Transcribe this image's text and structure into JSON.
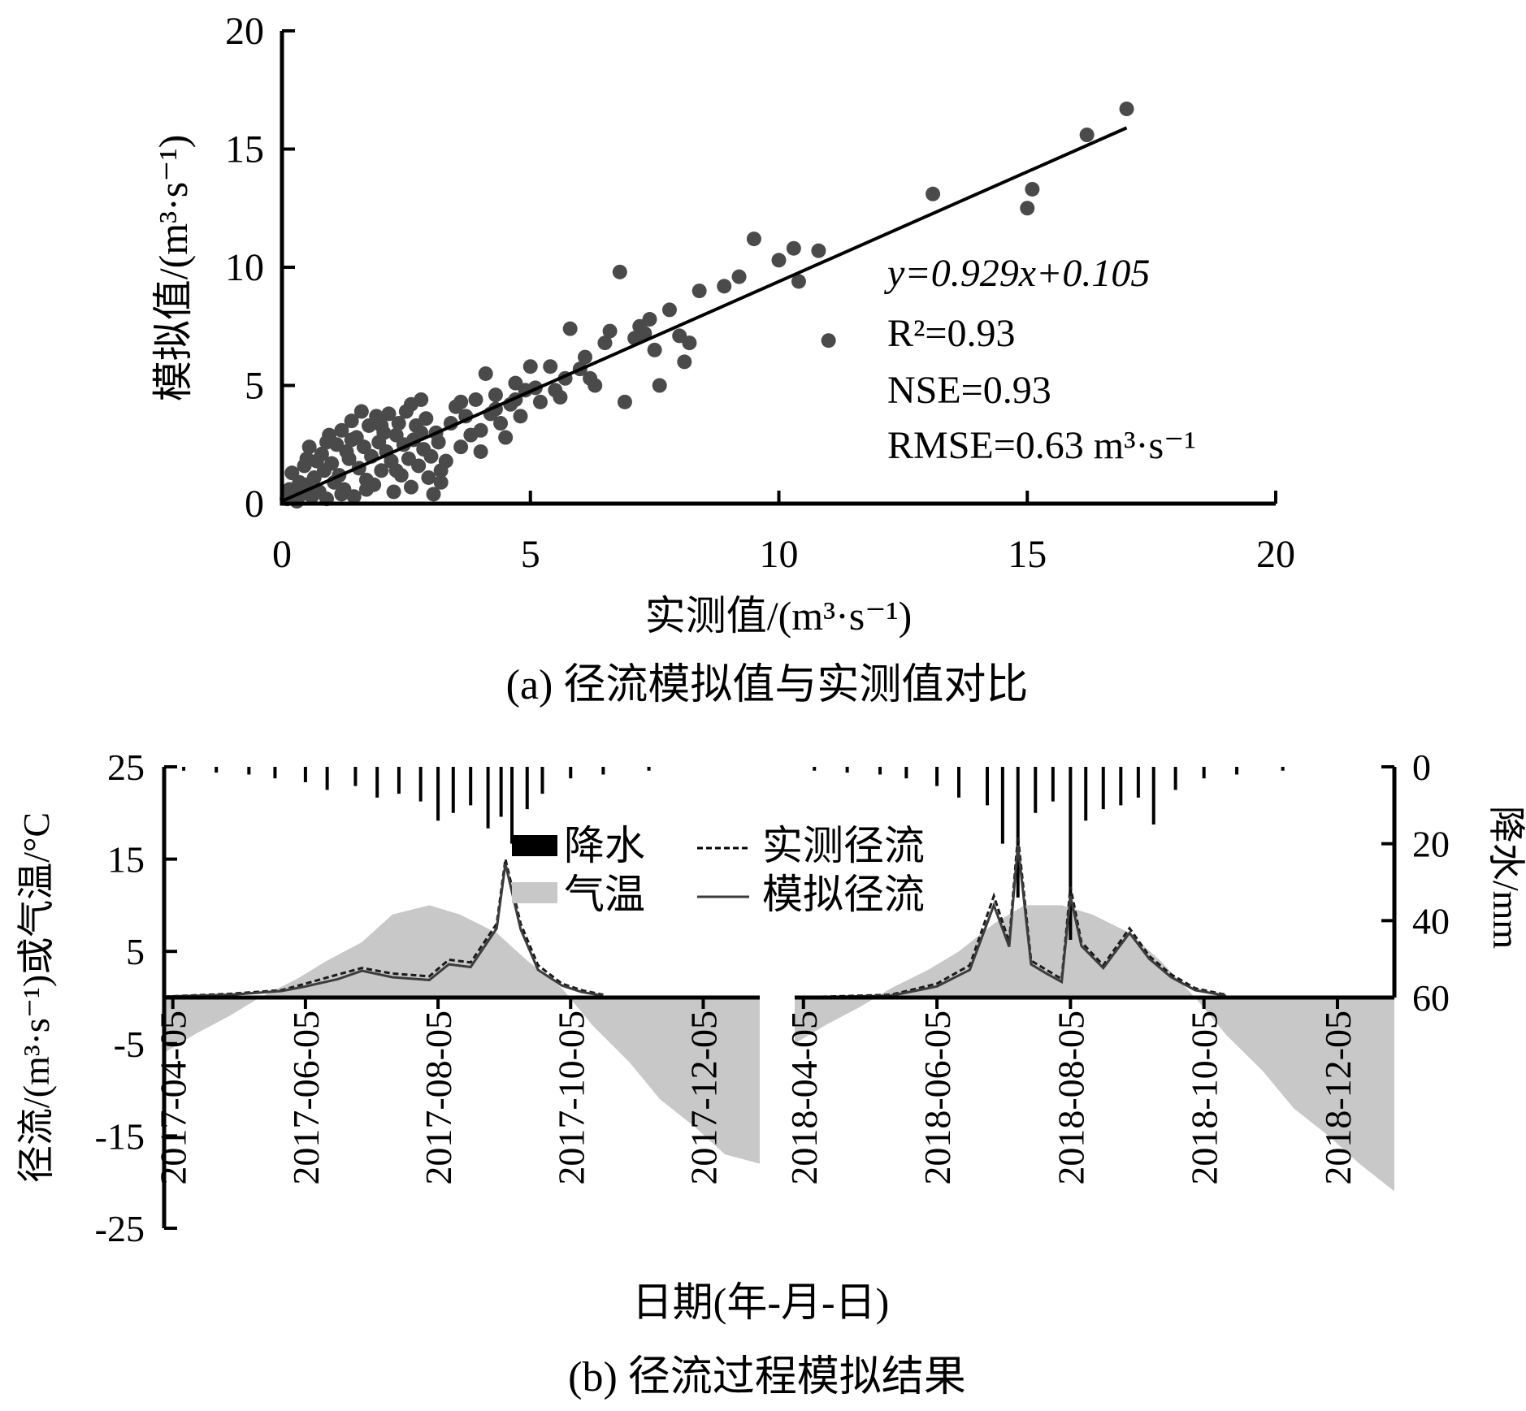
{
  "chart_data": [
    {
      "type": "scatter",
      "xlabel": "实测值/(m³·s⁻¹)",
      "ylabel": "模拟值/(m³·s⁻¹)",
      "caption": "(a) 径流模拟值与实测值对比",
      "xlim": [
        0,
        20
      ],
      "ylim": [
        0,
        20
      ],
      "xticks": [
        0,
        5,
        10,
        15,
        20
      ],
      "yticks": [
        0,
        5,
        10,
        15,
        20
      ],
      "grid": false,
      "fit_line": {
        "slope": 0.929,
        "intercept": 0.105,
        "x_range": [
          0,
          17
        ]
      },
      "annotations": {
        "equation": "y=0.929x+0.105",
        "r2": "R²=0.93",
        "nse": "NSE=0.93",
        "rmse": "RMSE=0.63 m³·s⁻¹"
      },
      "points": [
        [
          0.1,
          0.2
        ],
        [
          0.15,
          0.6
        ],
        [
          0.2,
          1.3
        ],
        [
          0.3,
          0.1
        ],
        [
          0.35,
          0.9
        ],
        [
          0.4,
          0.4
        ],
        [
          0.45,
          1.6
        ],
        [
          0.5,
          0.8
        ],
        [
          0.55,
          2.4
        ],
        [
          0.6,
          0.3
        ],
        [
          0.65,
          1.1
        ],
        [
          0.7,
          1.8
        ],
        [
          0.75,
          0.5
        ],
        [
          0.8,
          2.1
        ],
        [
          0.85,
          1.4
        ],
        [
          0.9,
          0.2
        ],
        [
          0.95,
          2.9
        ],
        [
          1.0,
          1.7
        ],
        [
          1.05,
          0.9
        ],
        [
          1.1,
          2.5
        ],
        [
          1.15,
          1.2
        ],
        [
          1.2,
          3.1
        ],
        [
          1.25,
          0.6
        ],
        [
          1.3,
          2.2
        ],
        [
          1.35,
          1.9
        ],
        [
          1.4,
          3.5
        ],
        [
          1.45,
          0.3
        ],
        [
          1.5,
          2.8
        ],
        [
          1.55,
          1.5
        ],
        [
          1.6,
          3.9
        ],
        [
          1.65,
          2.4
        ],
        [
          1.7,
          1.0
        ],
        [
          1.75,
          3.3
        ],
        [
          1.8,
          2.0
        ],
        [
          1.85,
          0.8
        ],
        [
          1.9,
          3.7
        ],
        [
          1.95,
          2.6
        ],
        [
          2.0,
          1.4
        ],
        [
          2.05,
          3.0
        ],
        [
          2.1,
          2.2
        ],
        [
          2.15,
          3.8
        ],
        [
          2.2,
          1.8
        ],
        [
          2.25,
          0.5
        ],
        [
          2.3,
          2.9
        ],
        [
          2.35,
          3.4
        ],
        [
          2.4,
          1.2
        ],
        [
          2.45,
          2.5
        ],
        [
          2.5,
          3.9
        ],
        [
          2.55,
          1.9
        ],
        [
          2.6,
          4.2
        ],
        [
          2.65,
          2.7
        ],
        [
          2.7,
          3.3
        ],
        [
          2.75,
          1.6
        ],
        [
          2.8,
          4.4
        ],
        [
          2.85,
          2.3
        ],
        [
          2.9,
          3.6
        ],
        [
          2.95,
          1.1
        ],
        [
          3.0,
          2.0
        ],
        [
          3.05,
          0.4
        ],
        [
          3.1,
          3.0
        ],
        [
          3.15,
          2.6
        ],
        [
          3.2,
          0.9
        ],
        [
          3.3,
          1.8
        ],
        [
          3.4,
          3.4
        ],
        [
          3.5,
          4.1
        ],
        [
          3.6,
          2.4
        ],
        [
          3.7,
          3.7
        ],
        [
          3.8,
          2.9
        ],
        [
          3.9,
          4.4
        ],
        [
          4.0,
          3.1
        ],
        [
          4.1,
          5.5
        ],
        [
          4.2,
          3.8
        ],
        [
          4.3,
          4.6
        ],
        [
          4.4,
          3.4
        ],
        [
          4.5,
          2.8
        ],
        [
          4.6,
          4.2
        ],
        [
          4.7,
          5.1
        ],
        [
          4.8,
          3.7
        ],
        [
          4.9,
          4.8
        ],
        [
          5.0,
          5.8
        ],
        [
          5.2,
          4.3
        ],
        [
          5.4,
          5.8
        ],
        [
          5.5,
          4.8
        ],
        [
          5.6,
          4.5
        ],
        [
          5.7,
          5.3
        ],
        [
          5.8,
          7.4
        ],
        [
          6.0,
          5.7
        ],
        [
          6.1,
          6.2
        ],
        [
          6.2,
          5.3
        ],
        [
          6.3,
          5.0
        ],
        [
          6.5,
          6.8
        ],
        [
          6.6,
          7.3
        ],
        [
          6.8,
          9.8
        ],
        [
          6.9,
          4.3
        ],
        [
          7.1,
          7.0
        ],
        [
          7.2,
          7.5
        ],
        [
          7.3,
          7.2
        ],
        [
          7.4,
          7.8
        ],
        [
          7.5,
          6.5
        ],
        [
          7.6,
          5.0
        ],
        [
          7.8,
          8.2
        ],
        [
          8.0,
          7.1
        ],
        [
          8.1,
          6.0
        ],
        [
          8.2,
          6.8
        ],
        [
          8.4,
          9.0
        ],
        [
          8.9,
          9.2
        ],
        [
          9.2,
          9.6
        ],
        [
          9.5,
          11.2
        ],
        [
          10.0,
          10.3
        ],
        [
          10.3,
          10.8
        ],
        [
          10.4,
          9.4
        ],
        [
          10.8,
          10.7
        ],
        [
          11.0,
          6.9
        ],
        [
          13.1,
          13.1
        ],
        [
          15.0,
          12.5
        ],
        [
          15.1,
          13.3
        ],
        [
          16.2,
          15.6
        ],
        [
          17.0,
          16.7
        ],
        [
          0.5,
          1.9
        ],
        [
          0.9,
          2.6
        ],
        [
          1.2,
          0.4
        ],
        [
          1.4,
          2.7
        ],
        [
          1.7,
          0.6
        ],
        [
          2.0,
          3.3
        ],
        [
          2.3,
          1.4
        ],
        [
          2.6,
          0.7
        ],
        [
          2.8,
          3.0
        ],
        [
          3.2,
          1.4
        ],
        [
          3.6,
          4.3
        ],
        [
          4.0,
          2.2
        ],
        [
          4.3,
          4.0
        ],
        [
          4.7,
          4.4
        ],
        [
          5.1,
          4.9
        ]
      ]
    },
    {
      "type": "line",
      "caption": "(b) 径流过程模拟结果",
      "xlabel": "日期(年-月-日)",
      "ylabel": "径流/(m³·s⁻¹)或气温/°C",
      "ylabel_right": "降水/mm",
      "ylim": [
        -25,
        25
      ],
      "yticks": [
        -25,
        -15,
        -5,
        5,
        15,
        25
      ],
      "ylim_right": [
        60,
        0
      ],
      "yticks_right": [
        0,
        20,
        40,
        60
      ],
      "periods": [
        {
          "start": "2017-04-01",
          "end": "2017-12-31",
          "xticks": [
            "2017-04-05",
            "2017-06-05",
            "2017-08-05",
            "2017-10-05",
            "2017-12-05"
          ]
        },
        {
          "start": "2018-04-01",
          "end": "2018-12-31",
          "xticks": [
            "2018-04-05",
            "2018-06-05",
            "2018-08-05",
            "2018-10-05",
            "2018-12-05"
          ]
        }
      ],
      "legend": {
        "placement": "top-center",
        "items": [
          {
            "name": "降水",
            "style": "black-bar"
          },
          {
            "name": "实测径流",
            "style": "dashed"
          },
          {
            "name": "气温",
            "style": "gray-area"
          },
          {
            "name": "模拟径流",
            "style": "solid"
          }
        ]
      },
      "colors": {
        "precip": "#000000",
        "temperature": "#c8c8c8",
        "observed": "#1a1a1a",
        "simulated": "#3c3c3c"
      },
      "series": [
        {
          "name": "气温",
          "period": 0,
          "dates": [
            "2017-04-01",
            "2017-04-15",
            "2017-05-01",
            "2017-05-15",
            "2017-06-01",
            "2017-06-15",
            "2017-07-01",
            "2017-07-15",
            "2017-08-01",
            "2017-08-15",
            "2017-09-01",
            "2017-09-15",
            "2017-10-01",
            "2017-10-15",
            "2017-11-01",
            "2017-11-15",
            "2017-12-01",
            "2017-12-15",
            "2017-12-31"
          ],
          "values": [
            -6,
            -4,
            -2,
            0,
            2,
            4,
            6,
            9,
            10,
            9,
            7,
            4,
            1,
            -3,
            -7,
            -11,
            -14,
            -17,
            -18
          ]
        },
        {
          "name": "气温",
          "period": 1,
          "dates": [
            "2018-04-01",
            "2018-04-15",
            "2018-05-01",
            "2018-05-15",
            "2018-06-01",
            "2018-06-15",
            "2018-07-01",
            "2018-07-15",
            "2018-08-01",
            "2018-08-15",
            "2018-09-01",
            "2018-09-15",
            "2018-10-01",
            "2018-10-15",
            "2018-11-01",
            "2018-11-15",
            "2018-12-01",
            "2018-12-15",
            "2018-12-31"
          ],
          "values": [
            -5,
            -3,
            -1,
            1,
            3,
            5,
            8,
            10,
            10,
            9,
            7,
            4,
            0,
            -4,
            -8,
            -12,
            -15,
            -18,
            -21
          ]
        },
        {
          "name": "实测径流",
          "period": 0,
          "dates": [
            "2017-04-01",
            "2017-05-01",
            "2017-05-25",
            "2017-06-05",
            "2017-06-20",
            "2017-07-01",
            "2017-07-15",
            "2017-08-01",
            "2017-08-10",
            "2017-08-20",
            "2017-09-01",
            "2017-09-05",
            "2017-09-12",
            "2017-09-20",
            "2017-10-01",
            "2017-10-10",
            "2017-10-20"
          ],
          "values": [
            0.1,
            0.4,
            0.8,
            1.5,
            2.5,
            3.2,
            2.6,
            2.3,
            4.1,
            3.8,
            8.0,
            15.0,
            8.0,
            3.5,
            1.5,
            0.8,
            0.3
          ]
        },
        {
          "name": "模拟径流",
          "period": 0,
          "dates": [
            "2017-04-01",
            "2017-05-01",
            "2017-05-25",
            "2017-06-05",
            "2017-06-20",
            "2017-07-01",
            "2017-07-15",
            "2017-08-01",
            "2017-08-10",
            "2017-08-20",
            "2017-09-01",
            "2017-09-05",
            "2017-09-12",
            "2017-09-20",
            "2017-10-01",
            "2017-10-10",
            "2017-10-20"
          ],
          "values": [
            0.1,
            0.3,
            0.7,
            1.2,
            2.0,
            2.9,
            2.2,
            1.9,
            3.6,
            3.3,
            7.5,
            14.5,
            7.4,
            3.0,
            1.3,
            0.6,
            0.2
          ]
        },
        {
          "name": "实测径流",
          "period": 1,
          "dates": [
            "2018-04-01",
            "2018-05-15",
            "2018-06-05",
            "2018-06-20",
            "2018-07-01",
            "2018-07-08",
            "2018-07-12",
            "2018-07-18",
            "2018-07-25",
            "2018-08-01",
            "2018-08-05",
            "2018-08-10",
            "2018-08-20",
            "2018-09-01",
            "2018-09-10",
            "2018-09-20",
            "2018-10-01",
            "2018-10-15"
          ],
          "values": [
            0.0,
            0.3,
            1.5,
            3.5,
            11.0,
            6.0,
            17.5,
            4.0,
            3.0,
            2.0,
            12.0,
            6.0,
            3.5,
            7.5,
            4.5,
            2.5,
            1.0,
            0.3
          ]
        },
        {
          "name": "模拟径流",
          "period": 1,
          "dates": [
            "2018-04-01",
            "2018-05-15",
            "2018-06-05",
            "2018-06-20",
            "2018-07-01",
            "2018-07-08",
            "2018-07-12",
            "2018-07-18",
            "2018-07-25",
            "2018-08-01",
            "2018-08-05",
            "2018-08-10",
            "2018-08-20",
            "2018-09-01",
            "2018-09-10",
            "2018-09-20",
            "2018-10-01",
            "2018-10-15"
          ],
          "values": [
            0.0,
            0.2,
            1.2,
            3.0,
            10.0,
            5.5,
            16.5,
            3.6,
            2.6,
            1.7,
            11.0,
            5.6,
            3.2,
            7.0,
            4.2,
            2.2,
            0.8,
            0.2
          ]
        },
        {
          "name": "降水",
          "period": 0,
          "dates": [
            "2017-04-10",
            "2017-04-25",
            "2017-05-10",
            "2017-05-22",
            "2017-06-05",
            "2017-06-15",
            "2017-06-28",
            "2017-07-08",
            "2017-07-18",
            "2017-07-28",
            "2017-08-05",
            "2017-08-12",
            "2017-08-20",
            "2017-08-28",
            "2017-09-03",
            "2017-09-08",
            "2017-09-15",
            "2017-09-22",
            "2017-10-05",
            "2017-10-20",
            "2017-11-10"
          ],
          "values": [
            1,
            1.5,
            2,
            3,
            4,
            6,
            5,
            8,
            7,
            9,
            14,
            12,
            10,
            16,
            13,
            20,
            11,
            7,
            3,
            2,
            1
          ]
        },
        {
          "name": "降水",
          "period": 1,
          "dates": [
            "2018-04-10",
            "2018-04-25",
            "2018-05-10",
            "2018-05-22",
            "2018-06-05",
            "2018-06-15",
            "2018-06-28",
            "2018-07-05",
            "2018-07-12",
            "2018-07-20",
            "2018-07-28",
            "2018-08-05",
            "2018-08-12",
            "2018-08-20",
            "2018-08-28",
            "2018-09-05",
            "2018-09-12",
            "2018-09-22",
            "2018-10-05",
            "2018-10-20",
            "2018-11-10"
          ],
          "values": [
            1,
            1.5,
            2,
            3,
            5,
            8,
            10,
            20,
            34,
            12,
            9,
            45,
            14,
            11,
            10,
            8,
            15,
            6,
            3,
            2,
            1
          ]
        }
      ]
    }
  ]
}
